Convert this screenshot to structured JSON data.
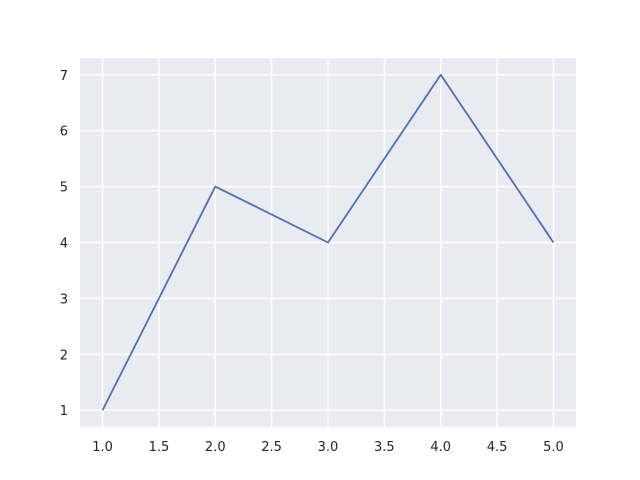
{
  "chart_data": {
    "type": "line",
    "title": "",
    "xlabel": "",
    "ylabel": "",
    "xlim": [
      0.8,
      5.2
    ],
    "ylim": [
      0.7,
      7.3
    ],
    "xticks": [
      1.0,
      1.5,
      2.0,
      2.5,
      3.0,
      3.5,
      4.0,
      4.5,
      5.0
    ],
    "xtick_labels": [
      "1.0",
      "1.5",
      "2.0",
      "2.5",
      "3.0",
      "3.5",
      "4.0",
      "4.5",
      "5.0"
    ],
    "yticks": [
      1,
      2,
      3,
      4,
      5,
      6,
      7
    ],
    "ytick_labels": [
      "1",
      "2",
      "3",
      "4",
      "5",
      "6",
      "7"
    ],
    "grid": true,
    "series": [
      {
        "x": [
          1,
          2,
          3,
          4,
          5
        ],
        "values": [
          1,
          5,
          4,
          7,
          4
        ],
        "color": "#4c72b0"
      }
    ],
    "colors": {
      "background": "#eaeaf2",
      "grid": "#ffffff",
      "text": "#262626"
    }
  }
}
